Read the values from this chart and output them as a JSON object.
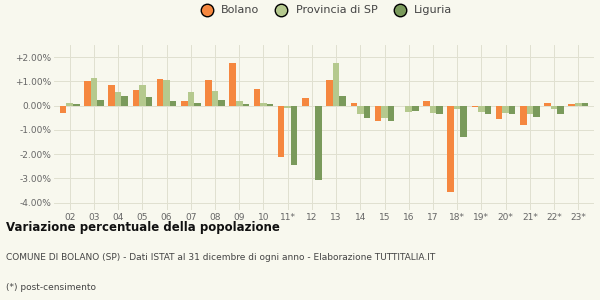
{
  "years": [
    "02",
    "03",
    "04",
    "05",
    "06",
    "07",
    "08",
    "09",
    "10",
    "11*",
    "12",
    "13",
    "14",
    "15",
    "16",
    "17",
    "18*",
    "19*",
    "20*",
    "21*",
    "22*",
    "23*"
  ],
  "bolano": [
    -0.3,
    1.0,
    0.85,
    0.65,
    1.1,
    0.2,
    1.05,
    1.75,
    0.7,
    -2.1,
    0.3,
    1.05,
    0.1,
    -0.65,
    0.0,
    0.2,
    -3.55,
    -0.05,
    -0.55,
    -0.8,
    0.1,
    0.05
  ],
  "provincia_sp": [
    0.1,
    1.15,
    0.55,
    0.85,
    1.05,
    0.55,
    0.6,
    0.2,
    0.1,
    -0.1,
    0.0,
    1.75,
    -0.35,
    -0.5,
    -0.25,
    -0.3,
    -0.15,
    -0.25,
    -0.3,
    -0.35,
    -0.15,
    0.1
  ],
  "liguria": [
    0.05,
    0.25,
    0.4,
    0.35,
    0.2,
    0.1,
    0.25,
    0.05,
    0.05,
    -2.45,
    -3.05,
    0.4,
    -0.5,
    -0.65,
    -0.2,
    -0.35,
    -1.3,
    -0.35,
    -0.35,
    -0.45,
    -0.35,
    0.1
  ],
  "bolano_color": "#f5873f",
  "provincia_color": "#b5c98e",
  "liguria_color": "#7a9a5b",
  "bg_color": "#f8f8ee",
  "grid_color": "#e0e0d0",
  "ylim_min": -4.3,
  "ylim_max": 2.5,
  "yticks": [
    -4.0,
    -3.0,
    -2.0,
    -1.0,
    0.0,
    1.0,
    2.0
  ],
  "ytick_labels": [
    "-4.00%",
    "-3.00%",
    "-2.00%",
    "-1.00%",
    "0.00%",
    "+1.00%",
    "+2.00%"
  ],
  "title": "Variazione percentuale della popolazione",
  "subtitle": "COMUNE DI BOLANO (SP) - Dati ISTAT al 31 dicembre di ogni anno - Elaborazione TUTTITALIA.IT",
  "footnote": "(*) post-censimento",
  "legend_labels": [
    "Bolano",
    "Provincia di SP",
    "Liguria"
  ],
  "bar_width": 0.27
}
